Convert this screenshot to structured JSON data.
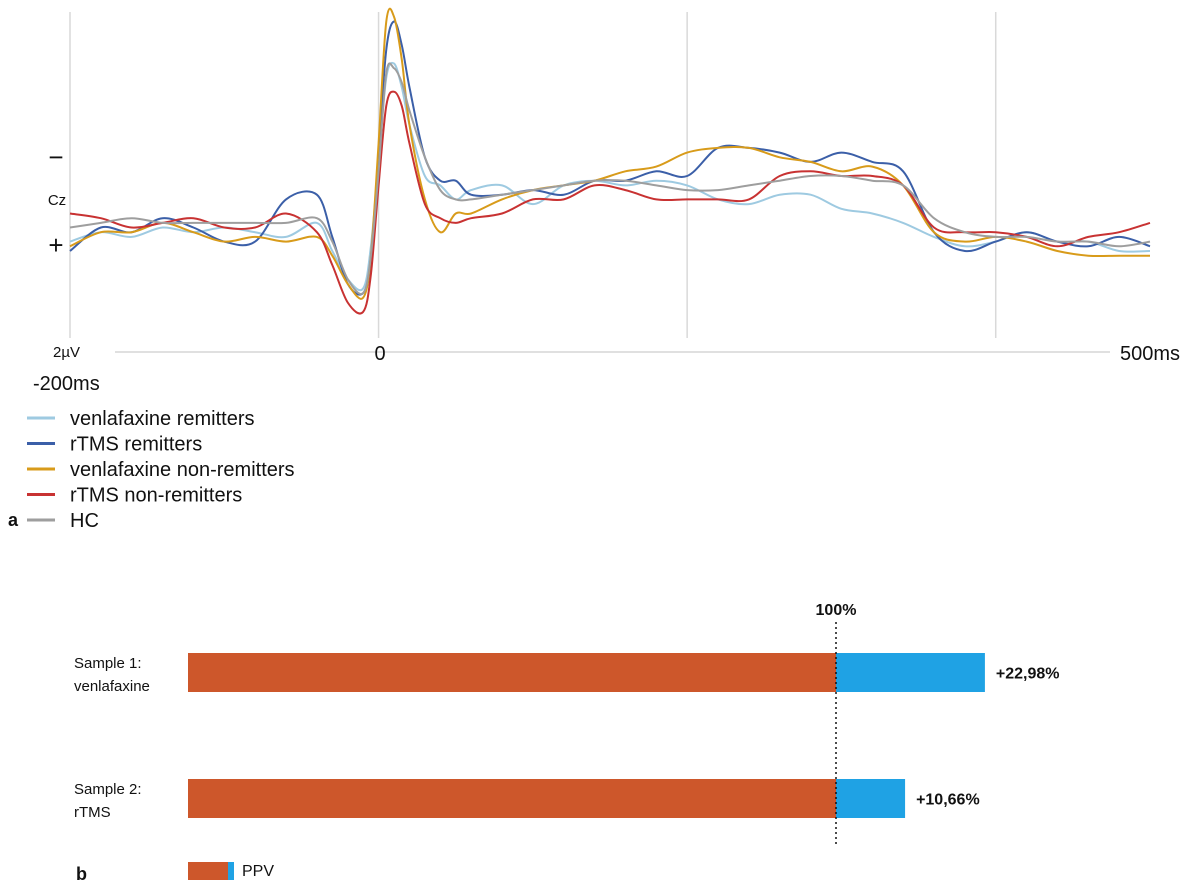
{
  "panels": {
    "a": {
      "label": "a"
    },
    "b": {
      "label": "b"
    }
  },
  "chart_data": [
    {
      "type": "line",
      "panel": "a",
      "channel_label": "Cz",
      "polarity": {
        "top": "−",
        "bottom": "+"
      },
      "scale_label": "2µV",
      "x_tick_labels": {
        "start": "-200ms",
        "zero": "0",
        "end": "500ms"
      },
      "xlim": [
        -200,
        500
      ],
      "ylim_uV": [
        -4.6,
        2.4
      ],
      "y_inverted": true,
      "grid_x": [
        -200,
        0,
        200,
        400
      ],
      "x": [
        -200,
        -180,
        -160,
        -140,
        -120,
        -100,
        -80,
        -60,
        -40,
        -30,
        -20,
        -10,
        -5,
        0,
        5,
        10,
        15,
        20,
        30,
        40,
        50,
        60,
        80,
        100,
        120,
        140,
        160,
        180,
        200,
        220,
        240,
        260,
        280,
        300,
        320,
        340,
        360,
        380,
        400,
        420,
        440,
        460,
        480,
        500
      ],
      "series": [
        {
          "name": "venlafaxine remitters",
          "color": "#9ecae1",
          "values": [
            0.3,
            0.1,
            0.2,
            0,
            0.1,
            0,
            0.1,
            0.2,
            -0.1,
            0.5,
            1.1,
            1.3,
            0.4,
            -1.4,
            -3.2,
            -3.5,
            -3.0,
            -2.2,
            -1.1,
            -0.9,
            -0.6,
            -0.8,
            -0.9,
            -0.5,
            -0.9,
            -1.0,
            -0.9,
            -1.0,
            -0.9,
            -0.6,
            -0.5,
            -0.7,
            -0.7,
            -0.4,
            -0.3,
            -0.1,
            0.2,
            0.4,
            0.3,
            0.1,
            0.3,
            0.3,
            0.5,
            0.5
          ]
        },
        {
          "name": "rTMS remitters",
          "color": "#3b5fa8",
          "values": [
            0.5,
            0,
            0.1,
            -0.2,
            0,
            0.3,
            0.3,
            -0.6,
            -0.7,
            0.2,
            1.2,
            1.4,
            0.7,
            -1.6,
            -3.8,
            -4.4,
            -3.9,
            -3.0,
            -1.5,
            -1.0,
            -1.0,
            -0.7,
            -0.7,
            -0.8,
            -0.7,
            -1.0,
            -1.0,
            -1.2,
            -1.1,
            -1.7,
            -1.7,
            -1.6,
            -1.4,
            -1.6,
            -1.4,
            -1.2,
            0.1,
            0.5,
            0.3,
            0.1,
            0.3,
            0.4,
            0.2,
            0.4
          ]
        },
        {
          "name": "venlafaxine non-remitters",
          "color": "#d89b1a",
          "values": [
            0.4,
            0.1,
            0.1,
            -0.1,
            0.1,
            0.3,
            0.2,
            0.3,
            0.2,
            0.6,
            1.2,
            1.5,
            0.6,
            -1.8,
            -4.4,
            -4.5,
            -3.6,
            -2.2,
            -0.6,
            0.1,
            -0.3,
            -0.3,
            -0.6,
            -0.8,
            -0.9,
            -1.0,
            -1.2,
            -1.3,
            -1.6,
            -1.7,
            -1.7,
            -1.5,
            -1.4,
            -1.2,
            -1.3,
            -0.9,
            0.1,
            0.3,
            0.2,
            0.3,
            0.5,
            0.6,
            0.6,
            0.6
          ]
        },
        {
          "name": "rTMS non-remitters",
          "color": "#c83232",
          "values": [
            -0.3,
            -0.2,
            0,
            -0.1,
            -0.2,
            0,
            0,
            -0.3,
            0.1,
            0.8,
            1.6,
            1.8,
            1.0,
            -0.9,
            -2.6,
            -2.9,
            -2.6,
            -1.8,
            -0.5,
            -0.2,
            -0.1,
            -0.2,
            -0.3,
            -0.6,
            -0.6,
            -0.9,
            -0.8,
            -0.6,
            -0.6,
            -0.6,
            -0.6,
            -1.1,
            -1.2,
            -1.1,
            -1.1,
            -0.9,
            0,
            0.1,
            0.1,
            0.2,
            0.4,
            0.2,
            0.1,
            -0.1
          ]
        },
        {
          "name": "HC",
          "color": "#9e9e9e",
          "values": [
            0,
            -0.1,
            -0.2,
            -0.1,
            -0.1,
            -0.1,
            -0.1,
            -0.1,
            -0.2,
            0.3,
            1.1,
            1.4,
            0.6,
            -1.2,
            -3.3,
            -3.4,
            -3.1,
            -2.5,
            -1.5,
            -0.8,
            -0.6,
            -0.6,
            -0.7,
            -0.8,
            -0.9,
            -1.0,
            -1.0,
            -0.9,
            -0.8,
            -0.8,
            -0.9,
            -1.0,
            -1.1,
            -1.1,
            -1.0,
            -0.9,
            -0.2,
            0.1,
            0.2,
            0.2,
            0.3,
            0.3,
            0.4,
            0.3
          ]
        }
      ]
    },
    {
      "type": "bar",
      "panel": "b",
      "orientation": "horizontal",
      "stacked": true,
      "reference_label": "100%",
      "reference_value": 100,
      "xlim": [
        0,
        123
      ],
      "legend": {
        "label": "PPV",
        "placement": "bottom-left"
      },
      "colors": {
        "base": "#cd572b",
        "gain": "#1fa2e4"
      },
      "categories": [
        {
          "line1": "Sample 1:",
          "line2": "venlafaxine",
          "base": 100,
          "gain": 22.98,
          "gain_label": "+22,98%"
        },
        {
          "line1": "Sample 2:",
          "line2": "rTMS",
          "base": 100,
          "gain": 10.66,
          "gain_label": "+10,66%"
        }
      ]
    }
  ]
}
